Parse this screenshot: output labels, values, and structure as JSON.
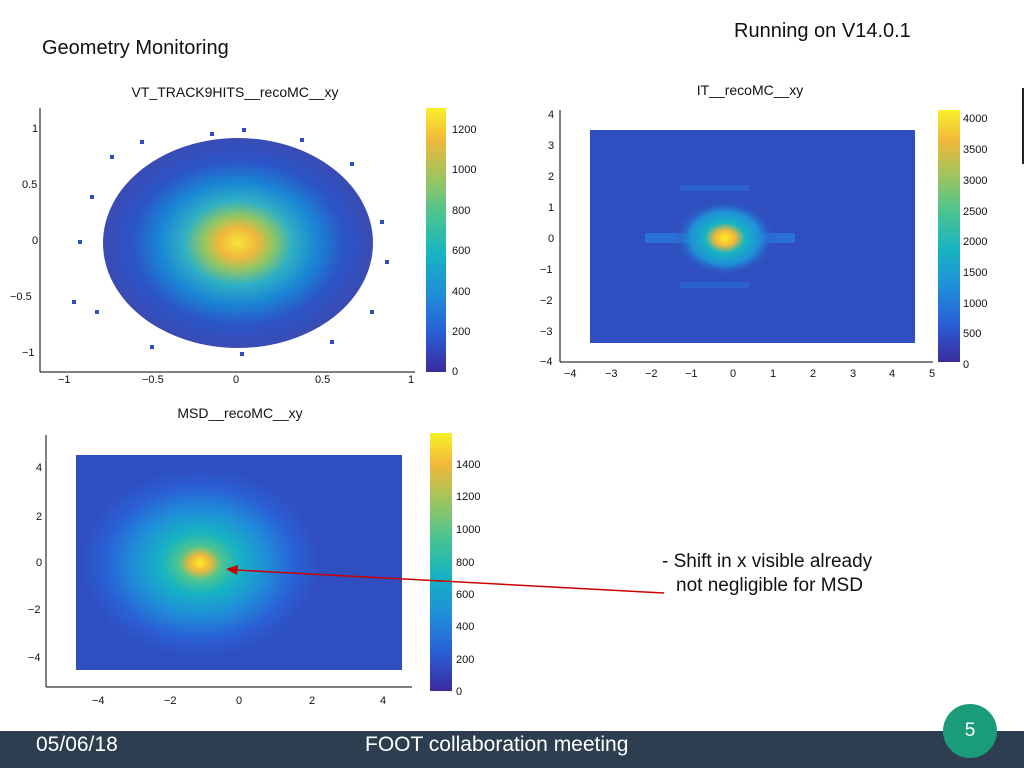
{
  "slide": {
    "title": "Geometry Monitoring",
    "version_note": "Running on V14.0.1"
  },
  "plots": [
    {
      "title": "VT_TRACK9HITS__recoMC__xy",
      "x_ticks": [
        "−1",
        "−0.5",
        "0",
        "0.5",
        "1"
      ],
      "y_ticks": [
        "1",
        "0.5",
        "0",
        "−0.5",
        "−1"
      ],
      "colorbar_ticks": [
        "1200",
        "1000",
        "800",
        "600",
        "400",
        "200",
        "0"
      ]
    },
    {
      "title": "IT__recoMC__xy",
      "x_ticks": [
        "−4",
        "−3",
        "−2",
        "−1",
        "0",
        "1",
        "2",
        "3",
        "4",
        "5"
      ],
      "y_ticks": [
        "4",
        "3",
        "2",
        "1",
        "0",
        "−1",
        "−2",
        "−3",
        "−4"
      ],
      "colorbar_ticks": [
        "4000",
        "3500",
        "3000",
        "2500",
        "2000",
        "1500",
        "1000",
        "500",
        "0"
      ]
    },
    {
      "title": "MSD__recoMC__xy",
      "x_ticks": [
        "−4",
        "−2",
        "0",
        "2",
        "4"
      ],
      "y_ticks": [
        "4",
        "2",
        "0",
        "−2",
        "−4"
      ],
      "colorbar_ticks": [
        "1400",
        "1200",
        "1000",
        "800",
        "600",
        "400",
        "200",
        "0"
      ]
    }
  ],
  "annotation": {
    "line1": "- Shift in x visible already",
    "line2": "not negligible for MSD"
  },
  "footer": {
    "date": "05/06/18",
    "meeting": "FOOT collaboration meeting",
    "page_number": "5"
  },
  "colors": {
    "arrow": "#cc0000",
    "footer_bg": "#2d3e50",
    "badge": "#1a9c7a"
  }
}
